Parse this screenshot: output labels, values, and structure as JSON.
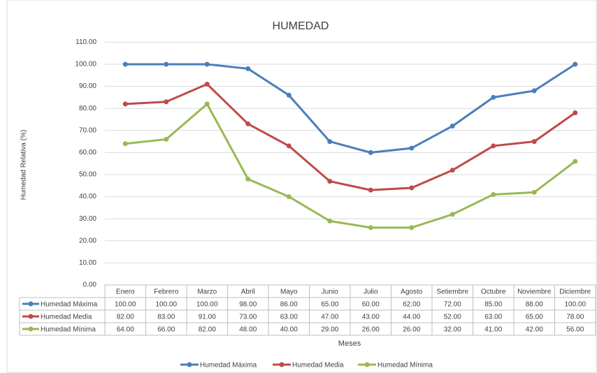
{
  "chart_data": {
    "type": "line",
    "title": "HUMEDAD",
    "x_label": "Meses",
    "y_label": "Humedad Relativa (%)",
    "categories": [
      "Enero",
      "Febrero",
      "Marzo",
      "Abril",
      "Mayo",
      "Junio",
      "Julio",
      "Agosto",
      "Setiembre",
      "Octubre",
      "Noviembre",
      "Diciembre"
    ],
    "series": [
      {
        "name": "Humedad Máxima",
        "color": "#4a7ebb",
        "values": [
          100,
          100,
          100,
          98,
          86,
          65,
          60,
          62,
          72,
          85,
          88,
          100
        ],
        "value_labels": [
          "100.00",
          "100.00",
          "100.00",
          "98.00",
          "86.00",
          "65.00",
          "60.00",
          "62.00",
          "72.00",
          "85.00",
          "88.00",
          "100.00"
        ]
      },
      {
        "name": "Humedad Media",
        "color": "#be4b48",
        "values": [
          82,
          83,
          91,
          73,
          63,
          47,
          43,
          44,
          52,
          63,
          65,
          78
        ],
        "value_labels": [
          "82.00",
          "83.00",
          "91.00",
          "73.00",
          "63.00",
          "47.00",
          "43.00",
          "44.00",
          "52.00",
          "63.00",
          "65.00",
          "78.00"
        ]
      },
      {
        "name": "Humedad Mínima",
        "color": "#98b954",
        "values": [
          64,
          66,
          82,
          48,
          40,
          29,
          26,
          26,
          32,
          41,
          42,
          56
        ],
        "value_labels": [
          "64.00",
          "66.00",
          "82.00",
          "48.00",
          "40.00",
          "29.00",
          "26.00",
          "26.00",
          "32.00",
          "41.00",
          "42.00",
          "56.00"
        ]
      }
    ],
    "ylim": [
      0,
      110
    ],
    "yticks": [
      {
        "value": 0,
        "label": "0.00"
      },
      {
        "value": 10,
        "label": "10.00"
      },
      {
        "value": 20,
        "label": "20.00"
      },
      {
        "value": 30,
        "label": "30.00"
      },
      {
        "value": 40,
        "label": "40.00"
      },
      {
        "value": 50,
        "label": "50.00"
      },
      {
        "value": 60,
        "label": "60.00"
      },
      {
        "value": 70,
        "label": "70.00"
      },
      {
        "value": 80,
        "label": "80.00"
      },
      {
        "value": 90,
        "label": "90.00"
      },
      {
        "value": 100,
        "label": "100.00"
      },
      {
        "value": 110,
        "label": "110.00"
      }
    ],
    "grid": true,
    "legend": "bottom",
    "data_table": true
  }
}
